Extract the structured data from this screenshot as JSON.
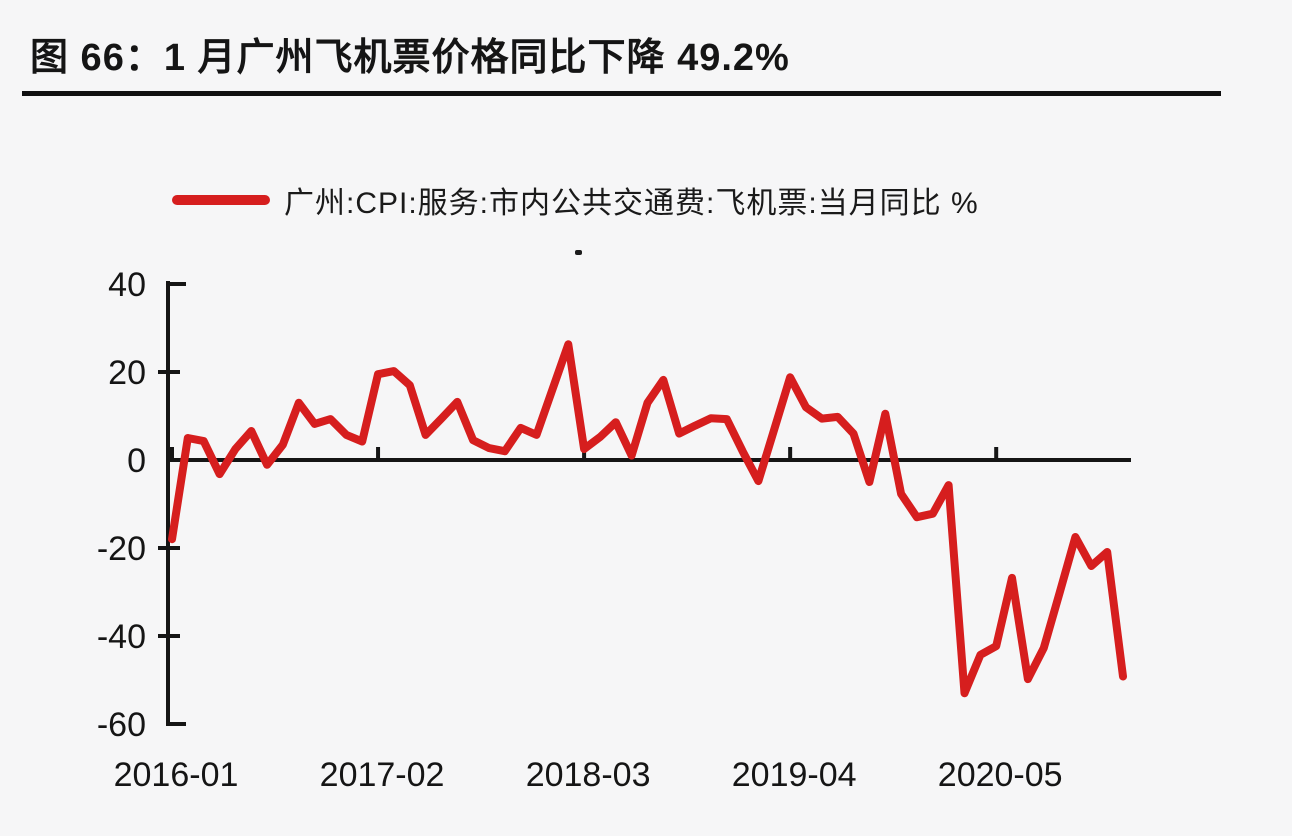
{
  "figure": {
    "title": "图 66：1 月广州飞机票价格同比下降 49.2%",
    "legend_label": "广州:CPI:服务:市内公共交通费:飞机票:当月同比 %"
  },
  "chart_data": {
    "type": "line",
    "title": "图 66：1 月广州飞机票价格同比下降 49.2%",
    "series_name": "广州:CPI:服务:市内公共交通费:飞机票:当月同比 %",
    "unit": "%",
    "legend_position": "top",
    "grid": false,
    "ylim": [
      -60,
      40
    ],
    "y_ticks": [
      40,
      20,
      0,
      -20,
      -40,
      -60
    ],
    "x_tick_labels": [
      "2016-01",
      "2017-02",
      "2018-03",
      "2019-04",
      "2020-05"
    ],
    "x": [
      "2016-01",
      "2016-02",
      "2016-03",
      "2016-04",
      "2016-05",
      "2016-06",
      "2016-07",
      "2016-08",
      "2016-09",
      "2016-10",
      "2016-11",
      "2016-12",
      "2017-01",
      "2017-02",
      "2017-03",
      "2017-04",
      "2017-05",
      "2017-06",
      "2017-07",
      "2017-08",
      "2017-09",
      "2017-10",
      "2017-11",
      "2017-12",
      "2018-01",
      "2018-02",
      "2018-03",
      "2018-04",
      "2018-05",
      "2018-06",
      "2018-07",
      "2018-08",
      "2018-09",
      "2018-10",
      "2018-11",
      "2018-12",
      "2019-01",
      "2019-02",
      "2019-03",
      "2019-04",
      "2019-05",
      "2019-06",
      "2019-07",
      "2019-08",
      "2019-09",
      "2019-10",
      "2019-11",
      "2019-12",
      "2020-01",
      "2020-02",
      "2020-03",
      "2020-04",
      "2020-05",
      "2020-06",
      "2020-07",
      "2020-08",
      "2020-09",
      "2020-10",
      "2020-11",
      "2020-12",
      "2021-01"
    ],
    "values": [
      -18.0,
      5.0,
      4.3,
      -3.2,
      2.5,
      6.6,
      -1.1,
      3.5,
      13.0,
      8.2,
      9.3,
      5.7,
      4.2,
      19.5,
      20.2,
      17.0,
      5.7,
      9.4,
      13.2,
      4.5,
      2.7,
      2.0,
      7.3,
      5.7,
      16.0,
      26.3,
      2.5,
      5.2,
      8.6,
      1.0,
      13.0,
      18.2,
      6.0,
      7.8,
      9.5,
      9.3,
      2.0,
      -4.8,
      7.0,
      18.8,
      12.0,
      9.4,
      9.8,
      6.0,
      -5.0,
      10.5,
      -7.7,
      -13.0,
      -12.2,
      -5.7,
      -53.0,
      -44.3,
      -42.3,
      -26.8,
      -49.8,
      -42.7,
      -30.2,
      -17.5,
      -24.1,
      -20.9,
      -49.2
    ],
    "colors": {
      "line": "#d61e1e",
      "axis": "#151515",
      "background": "#f6f6f7"
    }
  }
}
